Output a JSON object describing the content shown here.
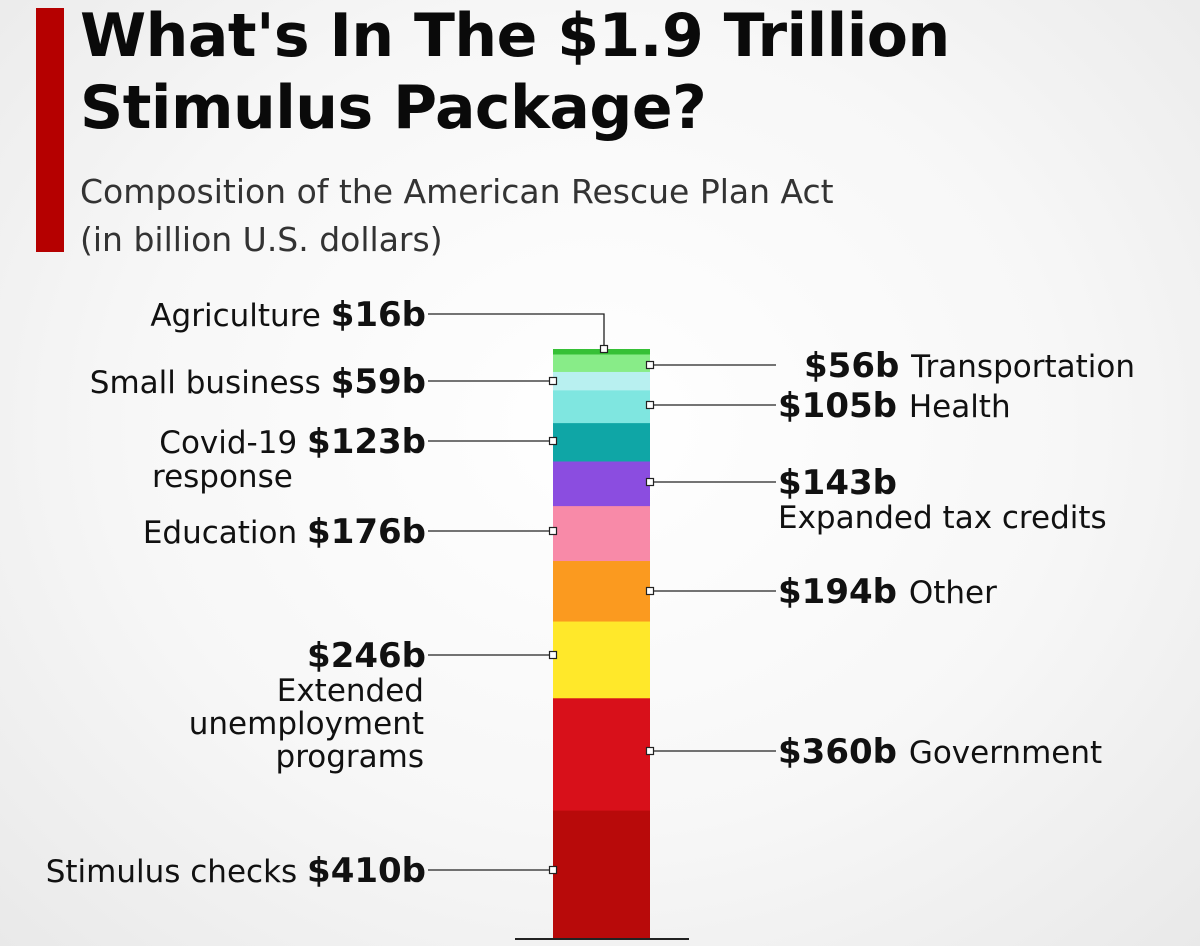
{
  "header": {
    "title_line1": "What's In The $1.9 Trillion",
    "title_line2": "Stimulus Package?",
    "subtitle_line1": "Composition of the American Rescue Plan Act",
    "subtitle_line2": "(in billion U.S. dollars)",
    "accent_color": "#b50000"
  },
  "chart_data": {
    "type": "bar",
    "stacked": true,
    "title": "What's In The $1.9 Trillion Stimulus Package?",
    "subtitle": "Composition of the American Rescue Plan Act (in billion U.S. dollars)",
    "unit": "billion U.S. dollars",
    "segments": [
      {
        "category": "Stimulus checks",
        "value": 410,
        "value_label": "$410b",
        "label_lines": [
          "Stimulus checks"
        ],
        "side": "left",
        "color": "#b80a0a"
      },
      {
        "category": "Government",
        "value": 360,
        "value_label": "$360b",
        "label_lines": [
          "Government"
        ],
        "side": "right",
        "color": "#d8101a"
      },
      {
        "category": "Extended unemployment programs",
        "value": 246,
        "value_label": "$246b",
        "label_lines": [
          "Extended",
          "unemployment",
          "programs"
        ],
        "side": "left",
        "color": "#ffe82a"
      },
      {
        "category": "Other",
        "value": 194,
        "value_label": "$194b",
        "label_lines": [
          "Other"
        ],
        "side": "right",
        "color": "#fb9a1f"
      },
      {
        "category": "Education",
        "value": 176,
        "value_label": "$176b",
        "label_lines": [
          "Education"
        ],
        "side": "left",
        "color": "#f88aa8"
      },
      {
        "category": "Expanded tax credits",
        "value": 143,
        "value_label": "$143b",
        "label_lines": [
          "Expanded tax credits"
        ],
        "side": "right",
        "color": "#8b4de0"
      },
      {
        "category": "Covid-19 response",
        "value": 123,
        "value_label": "$123b",
        "label_lines": [
          "Covid-19",
          "response"
        ],
        "side": "left",
        "color": "#0fa6a6"
      },
      {
        "category": "Health",
        "value": 105,
        "value_label": "$105b",
        "label_lines": [
          "Health"
        ],
        "side": "right",
        "color": "#7fe6e0"
      },
      {
        "category": "Small business",
        "value": 59,
        "value_label": "$59b",
        "label_lines": [
          "Small business"
        ],
        "side": "left",
        "color": "#b8f0f0"
      },
      {
        "category": "Transportation",
        "value": 56,
        "value_label": "$56b",
        "label_lines": [
          "Transportation"
        ],
        "side": "right",
        "color": "#88ec88"
      },
      {
        "category": "Agriculture",
        "value": 16,
        "value_label": "$16b",
        "label_lines": [
          "Agriculture"
        ],
        "side": "left",
        "color": "#36c036"
      }
    ]
  }
}
